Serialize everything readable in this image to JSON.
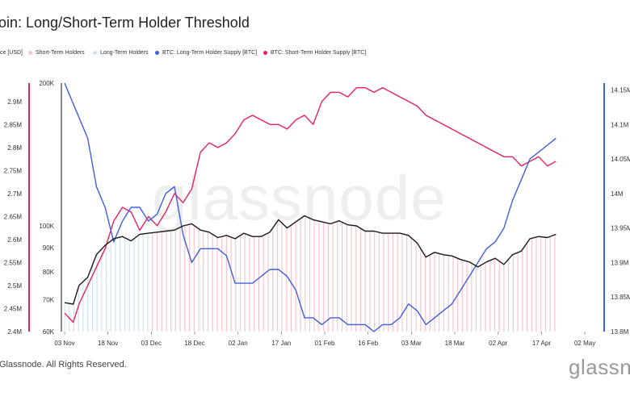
{
  "title": "oin: Long/Short-Term Holder Threshold",
  "legend": [
    {
      "label": "ce [USD]",
      "color": "#000000"
    },
    {
      "label": "Short-Term Holders",
      "color": "#f6c6cc"
    },
    {
      "label": "Long-Term Holders",
      "color": "#cfe3f6"
    },
    {
      "label": "BTC: Long-Term Holder Supply [BTC]",
      "color": "#3d5fe0"
    },
    {
      "label": "BTC: Short-Term Holder Supply [BTC]",
      "color": "#e5215f"
    }
  ],
  "watermark": "glassnode",
  "footer": "Glassnode. All Rights Reserved.",
  "brand": "glassne",
  "colors": {
    "lth_supply": "#3d5fe0",
    "sth_supply": "#e5215f",
    "price": "#1a1a1a",
    "sth_fill": "#f6c6cc",
    "lth_fill": "#cfe3f6"
  },
  "chart_data": {
    "type": "line",
    "x_ticks": [
      "03 Nov",
      "18 Nov",
      "03 Dec",
      "18 Dec",
      "02 Jan",
      "17 Jan",
      "01 Feb",
      "16 Feb",
      "03 Mar",
      "18 Mar",
      "02 Apr",
      "17 Apr",
      "02 May"
    ],
    "left_axis_ticks": [
      "2.4M",
      "2.45M",
      "2.5M",
      "2.55M",
      "2.6M",
      "2.65M",
      "2.7M",
      "2.75M",
      "2.8M",
      "2.85M",
      "2.9M"
    ],
    "price_axis_ticks": [
      "60K",
      "70K",
      "80K",
      "90K",
      "100K",
      "200K"
    ],
    "right_axis_ticks": [
      "13.8M",
      "13.85M",
      "13.9M",
      "13.95M",
      "14M",
      "14.05M",
      "14.1M",
      "14.15M"
    ],
    "sth_supply_axis": [
      2.4,
      2.94
    ],
    "lth_supply_axis": [
      13.8,
      14.16
    ],
    "shading": [
      {
        "name": "Long-Term Holders",
        "from": "03 Nov",
        "to": "03 Dec"
      },
      {
        "name": "Short-Term Holders",
        "from": "03 Dec",
        "to": "06 May"
      }
    ],
    "series": [
      {
        "name": "BTC: Short-Term Holder Supply [BTC]",
        "axis": "sth_supply",
        "unit": "M BTC",
        "points": [
          [
            0,
            2.44
          ],
          [
            3,
            2.42
          ],
          [
            5,
            2.46
          ],
          [
            8,
            2.5
          ],
          [
            11,
            2.54
          ],
          [
            14,
            2.58
          ],
          [
            17,
            2.64
          ],
          [
            20,
            2.67
          ],
          [
            23,
            2.66
          ],
          [
            26,
            2.62
          ],
          [
            29,
            2.65
          ],
          [
            32,
            2.63
          ],
          [
            35,
            2.66
          ],
          [
            38,
            2.7
          ],
          [
            41,
            2.68
          ],
          [
            44,
            2.71
          ],
          [
            47,
            2.79
          ],
          [
            50,
            2.81
          ],
          [
            53,
            2.8
          ],
          [
            56,
            2.81
          ],
          [
            59,
            2.83
          ],
          [
            62,
            2.86
          ],
          [
            65,
            2.87
          ],
          [
            68,
            2.86
          ],
          [
            71,
            2.85
          ],
          [
            74,
            2.85
          ],
          [
            77,
            2.84
          ],
          [
            80,
            2.86
          ],
          [
            83,
            2.87
          ],
          [
            86,
            2.85
          ],
          [
            89,
            2.9
          ],
          [
            92,
            2.92
          ],
          [
            95,
            2.92
          ],
          [
            98,
            2.91
          ],
          [
            101,
            2.93
          ],
          [
            104,
            2.93
          ],
          [
            107,
            2.92
          ],
          [
            110,
            2.93
          ],
          [
            113,
            2.92
          ],
          [
            116,
            2.91
          ],
          [
            119,
            2.9
          ],
          [
            122,
            2.89
          ],
          [
            125,
            2.87
          ],
          [
            128,
            2.86
          ],
          [
            131,
            2.85
          ],
          [
            134,
            2.84
          ],
          [
            137,
            2.83
          ],
          [
            140,
            2.82
          ],
          [
            143,
            2.81
          ],
          [
            146,
            2.8
          ],
          [
            149,
            2.79
          ],
          [
            152,
            2.78
          ],
          [
            155,
            2.78
          ],
          [
            158,
            2.76
          ],
          [
            161,
            2.77
          ],
          [
            164,
            2.78
          ],
          [
            167,
            2.76
          ],
          [
            170,
            2.77
          ]
        ]
      },
      {
        "name": "BTC: Long-Term Holder Supply [BTC]",
        "axis": "lth_supply",
        "unit": "M BTC",
        "points": [
          [
            0,
            14.16
          ],
          [
            3,
            14.13
          ],
          [
            5,
            14.11
          ],
          [
            8,
            14.08
          ],
          [
            11,
            14.01
          ],
          [
            14,
            13.98
          ],
          [
            17,
            13.93
          ],
          [
            20,
            13.96
          ],
          [
            23,
            13.98
          ],
          [
            26,
            13.98
          ],
          [
            29,
            13.96
          ],
          [
            32,
            13.97
          ],
          [
            35,
            14.0
          ],
          [
            38,
            14.01
          ],
          [
            41,
            13.94
          ],
          [
            44,
            13.9
          ],
          [
            47,
            13.92
          ],
          [
            50,
            13.92
          ],
          [
            53,
            13.92
          ],
          [
            56,
            13.91
          ],
          [
            59,
            13.87
          ],
          [
            62,
            13.87
          ],
          [
            65,
            13.87
          ],
          [
            68,
            13.88
          ],
          [
            71,
            13.89
          ],
          [
            74,
            13.89
          ],
          [
            77,
            13.88
          ],
          [
            80,
            13.86
          ],
          [
            83,
            13.82
          ],
          [
            86,
            13.82
          ],
          [
            89,
            13.81
          ],
          [
            92,
            13.82
          ],
          [
            95,
            13.82
          ],
          [
            98,
            13.81
          ],
          [
            101,
            13.81
          ],
          [
            104,
            13.81
          ],
          [
            107,
            13.8
          ],
          [
            110,
            13.81
          ],
          [
            113,
            13.81
          ],
          [
            116,
            13.82
          ],
          [
            119,
            13.84
          ],
          [
            122,
            13.83
          ],
          [
            125,
            13.81
          ],
          [
            128,
            13.82
          ],
          [
            131,
            13.83
          ],
          [
            134,
            13.84
          ],
          [
            137,
            13.86
          ],
          [
            140,
            13.88
          ],
          [
            143,
            13.9
          ],
          [
            146,
            13.92
          ],
          [
            149,
            13.93
          ],
          [
            152,
            13.95
          ],
          [
            155,
            13.99
          ],
          [
            158,
            14.02
          ],
          [
            161,
            14.05
          ],
          [
            164,
            14.06
          ],
          [
            167,
            14.07
          ],
          [
            170,
            14.08
          ]
        ]
      },
      {
        "name": "Price [USD]",
        "axis": "price",
        "unit": "USD",
        "points": [
          [
            0,
            69000
          ],
          [
            3,
            68500
          ],
          [
            5,
            75000
          ],
          [
            8,
            78000
          ],
          [
            11,
            87000
          ],
          [
            14,
            91000
          ],
          [
            17,
            94000
          ],
          [
            20,
            95000
          ],
          [
            23,
            93000
          ],
          [
            26,
            96000
          ],
          [
            29,
            96500
          ],
          [
            32,
            97000
          ],
          [
            35,
            97500
          ],
          [
            38,
            98000
          ],
          [
            41,
            100000
          ],
          [
            44,
            101000
          ],
          [
            47,
            98000
          ],
          [
            50,
            97000
          ],
          [
            53,
            94500
          ],
          [
            56,
            95500
          ],
          [
            59,
            94000
          ],
          [
            62,
            96500
          ],
          [
            65,
            95000
          ],
          [
            68,
            95000
          ],
          [
            71,
            97000
          ],
          [
            74,
            103000
          ],
          [
            77,
            99000
          ],
          [
            80,
            102000
          ],
          [
            83,
            105000
          ],
          [
            86,
            103000
          ],
          [
            89,
            102000
          ],
          [
            92,
            101000
          ],
          [
            95,
            102500
          ],
          [
            98,
            100500
          ],
          [
            101,
            100000
          ],
          [
            104,
            97500
          ],
          [
            107,
            97500
          ],
          [
            110,
            96500
          ],
          [
            113,
            96500
          ],
          [
            116,
            96500
          ],
          [
            119,
            95500
          ],
          [
            122,
            92000
          ],
          [
            125,
            86000
          ],
          [
            128,
            88000
          ],
          [
            131,
            87000
          ],
          [
            134,
            86500
          ],
          [
            137,
            85000
          ],
          [
            140,
            84000
          ],
          [
            143,
            82000
          ],
          [
            146,
            84000
          ],
          [
            149,
            85500
          ],
          [
            152,
            83000
          ],
          [
            155,
            87000
          ],
          [
            158,
            88500
          ],
          [
            161,
            94000
          ],
          [
            164,
            95000
          ],
          [
            167,
            94500
          ],
          [
            170,
            96000
          ]
        ]
      }
    ]
  }
}
